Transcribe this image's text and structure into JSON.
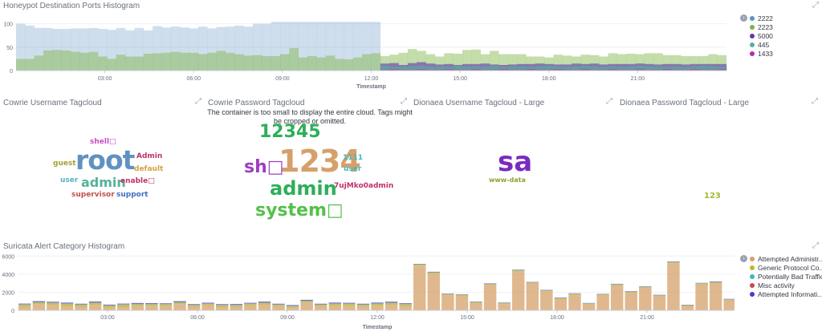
{
  "top_histogram": {
    "title": "Honeypot Destination Ports Histogram",
    "xlabel": "Timestamp",
    "legend": [
      {
        "label": "2222",
        "color": "#6092c0"
      },
      {
        "label": "2223",
        "color": "#7cb342"
      },
      {
        "label": "5000",
        "color": "#5e35b1"
      },
      {
        "label": "445",
        "color": "#54b399"
      },
      {
        "label": "1433",
        "color": "#b02fb0"
      }
    ]
  },
  "tagclouds": {
    "cowrie_user_title": "Cowrie Username Tagcloud",
    "cowrie_pass_title": "Cowrie Password Tagcloud",
    "dionaea_user_title": "Dionaea Username Tagcloud - Large",
    "dionaea_pass_title": "Dionaea Password Tagcloud - Large",
    "warning": "The container is too small to display the entire cloud. Tags might be cropped or omitted.",
    "cowrie_user_tags": [
      {
        "text": "shell□",
        "color": "#c44dc4"
      },
      {
        "text": "Admin",
        "color": "#c0306a"
      },
      {
        "text": "guest",
        "color": "#a6a032"
      },
      {
        "text": "root",
        "color": "#6092c0"
      },
      {
        "text": "default",
        "color": "#d6a044"
      },
      {
        "text": "user",
        "color": "#54b3c9"
      },
      {
        "text": "admin",
        "color": "#54b399"
      },
      {
        "text": "enable□",
        "color": "#c0306a"
      },
      {
        "text": "supervisor",
        "color": "#c0504d"
      },
      {
        "text": "support",
        "color": "#3f6fc0"
      }
    ],
    "cowrie_pass_tags": [
      {
        "text": "12345",
        "color": "#2eae5a"
      },
      {
        "text": "sh□",
        "color": "#9f3fc0"
      },
      {
        "text": "1234",
        "color": "#d6a06a"
      },
      {
        "text": "1111",
        "color": "#3fb7c0"
      },
      {
        "text": "user",
        "color": "#3fb7c0"
      },
      {
        "text": "admin",
        "color": "#2eae5a"
      },
      {
        "text": "7ujMko0admin",
        "color": "#c0306a"
      },
      {
        "text": "system□",
        "color": "#55c04a"
      }
    ],
    "dionaea_user_tags": [
      {
        "text": "sa",
        "color": "#7a2ac0"
      },
      {
        "text": "www-data",
        "color": "#8aa432"
      }
    ],
    "dionaea_pass_tags": [
      {
        "text": "123",
        "color": "#a6b832"
      }
    ]
  },
  "bottom_histogram": {
    "title": "Suricata Alert Category Histogram",
    "xlabel": "Timestamp",
    "legend": [
      {
        "label": "Attempted Administr...",
        "color": "#d6a06a"
      },
      {
        "label": "Generic Protocol Co...",
        "color": "#c0b432"
      },
      {
        "label": "Potentially Bad Traffic",
        "color": "#3fb7c0"
      },
      {
        "label": "Misc activity",
        "color": "#c0504d"
      },
      {
        "label": "Attempted Informati...",
        "color": "#3f3fc0"
      }
    ]
  },
  "chart_data": [
    {
      "type": "area",
      "title": "Honeypot Destination Ports Histogram",
      "xlabel": "Timestamp",
      "ylabel": "",
      "x_ticks": [
        "03:00",
        "06:00",
        "09:00",
        "12:00",
        "15:00",
        "18:00",
        "21:00"
      ],
      "y_ticks": [
        0,
        50,
        100
      ],
      "ylim": [
        0,
        125
      ],
      "series": [
        {
          "name": "2222",
          "values": [
            100,
            96,
            91,
            91,
            89,
            89,
            90,
            90,
            91,
            89,
            87,
            91,
            86,
            91,
            86,
            95,
            92,
            94,
            92,
            90,
            94,
            90,
            93,
            94,
            96,
            94,
            100,
            100,
            104,
            104,
            104,
            104,
            104,
            104,
            104,
            104,
            104,
            104,
            104,
            104,
            0,
            0,
            0,
            0,
            0,
            0,
            0,
            0,
            0,
            0,
            0,
            0,
            0,
            0,
            0,
            0,
            0,
            0,
            0,
            0,
            0,
            0,
            0,
            0,
            0,
            0,
            0,
            0,
            0,
            0,
            0,
            0,
            0,
            0,
            0,
            0,
            0,
            0
          ]
        },
        {
          "name": "2223",
          "values": [
            25,
            25,
            32,
            43,
            44,
            43,
            40,
            38,
            40,
            30,
            25,
            34,
            30,
            30,
            36,
            37,
            38,
            40,
            38,
            38,
            35,
            38,
            42,
            38,
            35,
            32,
            33,
            31,
            31,
            35,
            48,
            28,
            31,
            28,
            32,
            25,
            24,
            28,
            35,
            37,
            31,
            34,
            38,
            46,
            42,
            35,
            30,
            37,
            36,
            44,
            45,
            35,
            42,
            35,
            35,
            35,
            30,
            30,
            28,
            34,
            32,
            30,
            34,
            33,
            30,
            37,
            35,
            36,
            35,
            37,
            37,
            33,
            33,
            31,
            31,
            31,
            35,
            33
          ]
        },
        {
          "name": "5000",
          "values": [
            0,
            0,
            0,
            0,
            0,
            0,
            0,
            0,
            0,
            0,
            0,
            0,
            0,
            0,
            0,
            0,
            0,
            0,
            0,
            0,
            0,
            0,
            0,
            0,
            0,
            0,
            0,
            0,
            0,
            0,
            0,
            0,
            0,
            0,
            0,
            0,
            0,
            0,
            0,
            0,
            15,
            16,
            12,
            16,
            18,
            15,
            13,
            14,
            12,
            14,
            14,
            15,
            13,
            12,
            13,
            14,
            14,
            15,
            14,
            13,
            13,
            15,
            14,
            15,
            13,
            14,
            14,
            14,
            15,
            14,
            13,
            14,
            14,
            13,
            14,
            14,
            14,
            14
          ]
        },
        {
          "name": "445",
          "values": [
            0,
            0,
            0,
            0,
            0,
            0,
            0,
            0,
            0,
            0,
            0,
            0,
            0,
            0,
            0,
            0,
            0,
            0,
            0,
            0,
            0,
            0,
            0,
            0,
            0,
            0,
            0,
            0,
            0,
            0,
            0,
            0,
            0,
            0,
            0,
            0,
            0,
            0,
            0,
            0,
            10,
            8,
            9,
            9,
            10,
            8,
            9,
            8,
            10,
            9,
            9,
            8,
            10,
            8,
            9,
            9,
            8,
            9,
            10,
            9,
            8,
            9,
            10,
            9,
            8,
            9,
            8,
            9,
            10,
            9,
            9,
            8,
            9,
            8,
            9,
            10,
            9,
            8
          ]
        },
        {
          "name": "1433",
          "values": [
            0,
            0,
            0,
            0,
            0,
            0,
            0,
            0,
            0,
            0,
            0,
            0,
            0,
            0,
            0,
            0,
            0,
            0,
            0,
            0,
            0,
            0,
            0,
            0,
            0,
            0,
            0,
            0,
            0,
            0,
            0,
            0,
            0,
            0,
            0,
            0,
            0,
            0,
            0,
            0,
            2,
            3,
            2,
            2,
            3,
            2,
            2,
            3,
            2,
            2,
            3,
            2,
            2,
            3,
            2,
            2,
            3,
            2,
            2,
            3,
            2,
            2,
            3,
            2,
            2,
            3,
            2,
            2,
            3,
            2,
            2,
            3,
            2,
            2,
            3,
            2,
            2,
            3
          ]
        }
      ]
    },
    {
      "type": "bar",
      "title": "Suricata Alert Category Histogram",
      "xlabel": "Timestamp",
      "ylabel": "",
      "x_ticks": [
        "03:00",
        "06:00",
        "09:00",
        "12:00",
        "15:00",
        "18:00",
        "21:00"
      ],
      "y_ticks": [
        0,
        2000,
        4000,
        6000
      ],
      "ylim": [
        0,
        6200
      ],
      "series": [
        {
          "name": "Attempted Administr...",
          "values": [
            400,
            700,
            600,
            450,
            400,
            600,
            300,
            350,
            500,
            500,
            500,
            700,
            400,
            550,
            350,
            400,
            550,
            600,
            450,
            300,
            850,
            450,
            500,
            500,
            450,
            500,
            600,
            450,
            4950,
            4050,
            1700,
            1600,
            800,
            2800,
            700,
            4300,
            2950,
            2100,
            1250,
            1700,
            650,
            1650,
            2750,
            1950,
            2500,
            1550,
            5200,
            450,
            2850,
            3000,
            1100
          ]
        },
        {
          "name": "Generic Protocol Co...",
          "values": [
            200,
            150,
            200,
            250,
            200,
            200,
            200,
            250,
            150,
            150,
            150,
            150,
            150,
            150,
            200,
            150,
            150,
            200,
            150,
            150,
            150,
            150,
            200,
            200,
            150,
            200,
            200,
            200,
            100,
            120,
            80,
            100,
            80,
            80,
            80,
            100,
            100,
            80,
            80,
            100,
            80,
            80,
            100,
            80,
            80,
            80,
            100,
            80,
            100,
            100,
            80
          ]
        },
        {
          "name": "Potentially Bad Traffic",
          "values": [
            50,
            50,
            40,
            50,
            40,
            60,
            40,
            50,
            50,
            50,
            40,
            50,
            40,
            50,
            40,
            50,
            40,
            50,
            40,
            40,
            50,
            40,
            50,
            40,
            40,
            50,
            40,
            50,
            30,
            30,
            30,
            30,
            30,
            30,
            30,
            30,
            30,
            30,
            30,
            30,
            30,
            30,
            30,
            30,
            30,
            30,
            30,
            30,
            30,
            30,
            30
          ]
        },
        {
          "name": "Misc activity",
          "values": [
            30,
            30,
            30,
            30,
            30,
            30,
            30,
            30,
            30,
            30,
            30,
            30,
            30,
            30,
            30,
            30,
            30,
            30,
            30,
            30,
            30,
            30,
            30,
            30,
            30,
            30,
            30,
            30,
            20,
            20,
            20,
            20,
            20,
            20,
            20,
            20,
            20,
            20,
            20,
            20,
            20,
            20,
            20,
            20,
            20,
            20,
            20,
            20,
            20,
            20,
            20
          ]
        },
        {
          "name": "Attempted Informati...",
          "values": [
            60,
            80,
            70,
            70,
            60,
            80,
            60,
            60,
            80,
            70,
            60,
            80,
            60,
            60,
            60,
            70,
            60,
            80,
            60,
            60,
            80,
            60,
            70,
            60,
            60,
            70,
            80,
            60,
            30,
            40,
            30,
            30,
            30,
            40,
            30,
            40,
            30,
            30,
            30,
            30,
            30,
            30,
            30,
            30,
            30,
            30,
            40,
            30,
            30,
            40,
            30
          ]
        }
      ]
    }
  ]
}
